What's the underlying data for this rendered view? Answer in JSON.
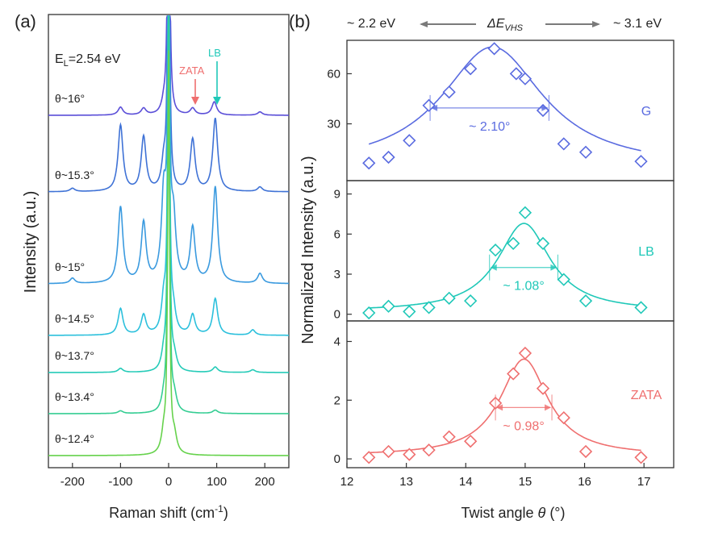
{
  "panel_a": {
    "panel_label": "(a)",
    "laser_label": "E",
    "laser_sub": "L",
    "laser_value": "=2.54 eV",
    "ylabel": "Intensity (a.u.)",
    "xlabel": "Raman shift (cm",
    "xlabel_sup": "-1",
    "xlabel_end": ")",
    "zata_label": "ZATA",
    "lb_label": "LB",
    "colors": {
      "zata": "#ef6f6f",
      "lb": "#1fc8b8"
    }
  },
  "panel_b": {
    "panel_label": "(b)",
    "left_energy": "~ 2.2 eV",
    "right_energy": "~ 3.1 eV",
    "delta_symbol": "ΔE",
    "delta_sub": "VHS",
    "ylabel": "Normalized Intensity (a.u.)",
    "xlabel": "Twist angle ",
    "xlabel_theta": "θ",
    "xlabel_unit": " (°)"
  },
  "chart_data": [
    {
      "type": "line",
      "panel": "a",
      "xlim": [
        -250,
        250
      ],
      "x_ticks": [
        -200,
        -100,
        0,
        100,
        200
      ],
      "x_tick_labels": [
        "-200",
        "-100",
        "0",
        "100",
        "200"
      ],
      "series": [
        {
          "name": "θ~16°",
          "color": "#5b4fd8",
          "peaks": [
            [
              -100,
              0.12
            ],
            [
              -52,
              0.1
            ],
            [
              -10,
              0.15
            ],
            [
              50,
              0.1
            ],
            [
              95,
              0.2
            ],
            [
              190,
              0.05
            ]
          ]
        },
        {
          "name": "θ~15.3°",
          "color": "#3f72d6",
          "peaks": [
            [
              -200,
              0.05
            ],
            [
              -100,
              1.0
            ],
            [
              -52,
              0.82
            ],
            [
              -10,
              0.4
            ],
            [
              50,
              0.78
            ],
            [
              97,
              1.1
            ],
            [
              190,
              0.07
            ]
          ]
        },
        {
          "name": "θ~15°",
          "color": "#3a9adf",
          "peaks": [
            [
              -200,
              0.08
            ],
            [
              -100,
              1.15
            ],
            [
              -52,
              0.9
            ],
            [
              -10,
              1.3
            ],
            [
              10,
              0.9
            ],
            [
              50,
              0.82
            ],
            [
              97,
              1.45
            ],
            [
              190,
              0.15
            ]
          ]
        },
        {
          "name": "θ~14.5°",
          "color": "#2cc0dc",
          "peaks": [
            [
              -100,
              0.4
            ],
            [
              -52,
              0.3
            ],
            [
              -10,
              0.5
            ],
            [
              10,
              0.3
            ],
            [
              50,
              0.3
            ],
            [
              97,
              0.55
            ],
            [
              175,
              0.08
            ]
          ]
        },
        {
          "name": "θ~13.7°",
          "color": "#26cbb8",
          "peaks": [
            [
              -100,
              0.06
            ],
            [
              -10,
              0.25
            ],
            [
              12,
              0.2
            ],
            [
              97,
              0.08
            ],
            [
              175,
              0.04
            ]
          ]
        },
        {
          "name": "θ~13.4°",
          "color": "#35cd93",
          "peaks": [
            [
              -100,
              0.04
            ],
            [
              -10,
              0.2
            ],
            [
              12,
              0.22
            ],
            [
              97,
              0.05
            ]
          ]
        },
        {
          "name": "θ~12.4°",
          "color": "#66d24c",
          "peaks": [
            [
              -10,
              0.3
            ],
            [
              12,
              0.25
            ]
          ]
        }
      ]
    },
    {
      "type": "scatter",
      "panel": "b",
      "name": "G",
      "color": "#5a6be0",
      "xlim": [
        12,
        17.5
      ],
      "ylim": [
        -4,
        80
      ],
      "y_ticks": [
        30,
        60
      ],
      "x": [
        12.37,
        12.7,
        13.05,
        13.38,
        13.72,
        14.08,
        14.48,
        14.85,
        15.0,
        15.3,
        15.65,
        16.02,
        16.95
      ],
      "y": [
        6.5,
        10,
        20,
        41,
        49,
        63,
        75,
        60,
        57,
        38,
        18,
        13,
        7.5
      ],
      "fit": {
        "center": 14.45,
        "fwhm": 2.1,
        "amplitude": 73,
        "baseline": 3
      },
      "fwhm_label": "~ 2.10°",
      "fwhm_range": [
        13.4,
        15.4
      ]
    },
    {
      "type": "scatter",
      "panel": "b",
      "name": "LB",
      "color": "#1fc8b8",
      "xlim": [
        12,
        17.5
      ],
      "ylim": [
        -0.5,
        10
      ],
      "y_ticks": [
        0,
        3,
        6,
        9
      ],
      "x": [
        12.37,
        12.7,
        13.05,
        13.38,
        13.72,
        14.08,
        14.5,
        14.8,
        15.0,
        15.3,
        15.65,
        16.02,
        16.95
      ],
      "y": [
        0.1,
        0.6,
        0.2,
        0.5,
        1.2,
        1.0,
        4.8,
        5.3,
        7.6,
        5.3,
        2.6,
        1.0,
        0.5
      ],
      "fit": {
        "center": 14.98,
        "fwhm": 1.08,
        "amplitude": 6.6,
        "baseline": 0.2
      },
      "fwhm_label": "~ 1.08°",
      "fwhm_range": [
        14.4,
        15.55
      ]
    },
    {
      "type": "scatter",
      "panel": "b",
      "name": "ZATA",
      "color": "#ef6f6f",
      "xlim": [
        12,
        17.5
      ],
      "ylim": [
        -0.3,
        4.7
      ],
      "y_ticks": [
        0,
        2,
        4
      ],
      "x": [
        12.37,
        12.7,
        13.05,
        13.38,
        13.72,
        14.08,
        14.5,
        14.8,
        15.0,
        15.3,
        15.65,
        16.02,
        16.95
      ],
      "y": [
        0.05,
        0.25,
        0.15,
        0.3,
        0.75,
        0.6,
        1.9,
        2.9,
        3.6,
        2.4,
        1.4,
        0.25,
        0.05
      ],
      "fit": {
        "center": 14.98,
        "fwhm": 0.98,
        "amplitude": 3.3,
        "baseline": 0.1
      },
      "fwhm_label": "~ 0.98°",
      "fwhm_range": [
        14.5,
        15.45
      ]
    }
  ],
  "panel_b_xaxis": {
    "x_ticks": [
      12,
      13,
      14,
      15,
      16,
      17
    ],
    "x_tick_labels": [
      "12",
      "13",
      "14",
      "15",
      "16",
      "17"
    ]
  }
}
